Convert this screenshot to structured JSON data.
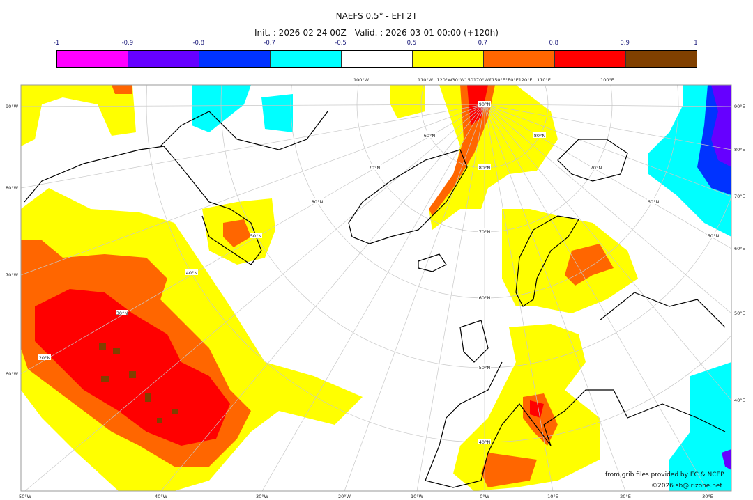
{
  "title": "NAEFS 0.5° - EFI 2T",
  "subtitle": "Init. : 2026-02-24 00Z - Valid. : 2026-03-01 00:00 (+120h)",
  "colorbar": {
    "labels": [
      "-1",
      "-0.9",
      "-0.8",
      "-0.7",
      "-0.5",
      "0.5",
      "0.7",
      "0.8",
      "0.9",
      "1"
    ],
    "colors": [
      "#ff00ff",
      "#6600ff",
      "#0033ff",
      "#00ffff",
      "#ffffff",
      "#ffff00",
      "#ff6600",
      "#ff0000",
      "#804000"
    ]
  },
  "map": {
    "left_labels": [
      "90°W",
      "80°W",
      "70°W",
      "60°W"
    ],
    "right_labels": [
      "90°E",
      "80°E",
      "70°E",
      "60°E",
      "50°E",
      "40°E"
    ],
    "bottom_labels": [
      "50°W",
      "40°W",
      "30°W",
      "20°W",
      "10°W",
      "0°W",
      "10°E",
      "20°E",
      "30°E"
    ],
    "top_labels": [
      "100°W",
      "110°W",
      "120°W30°W150170°W€150°E°E0°E120°E",
      "110°E",
      "100°E"
    ],
    "lat_labels": [
      "90°N",
      "80°N",
      "70°N",
      "60°N",
      "50°N",
      "40°N",
      "50°N",
      "40°N",
      "30°N",
      "20°N",
      "60°N",
      "70°N",
      "80°N",
      "80°N",
      "70°N",
      "60°N",
      "50°N"
    ]
  },
  "credits": {
    "source": "from grib files provided by EC & NCEP",
    "copyright": "©2026 sb@irizone.net"
  }
}
